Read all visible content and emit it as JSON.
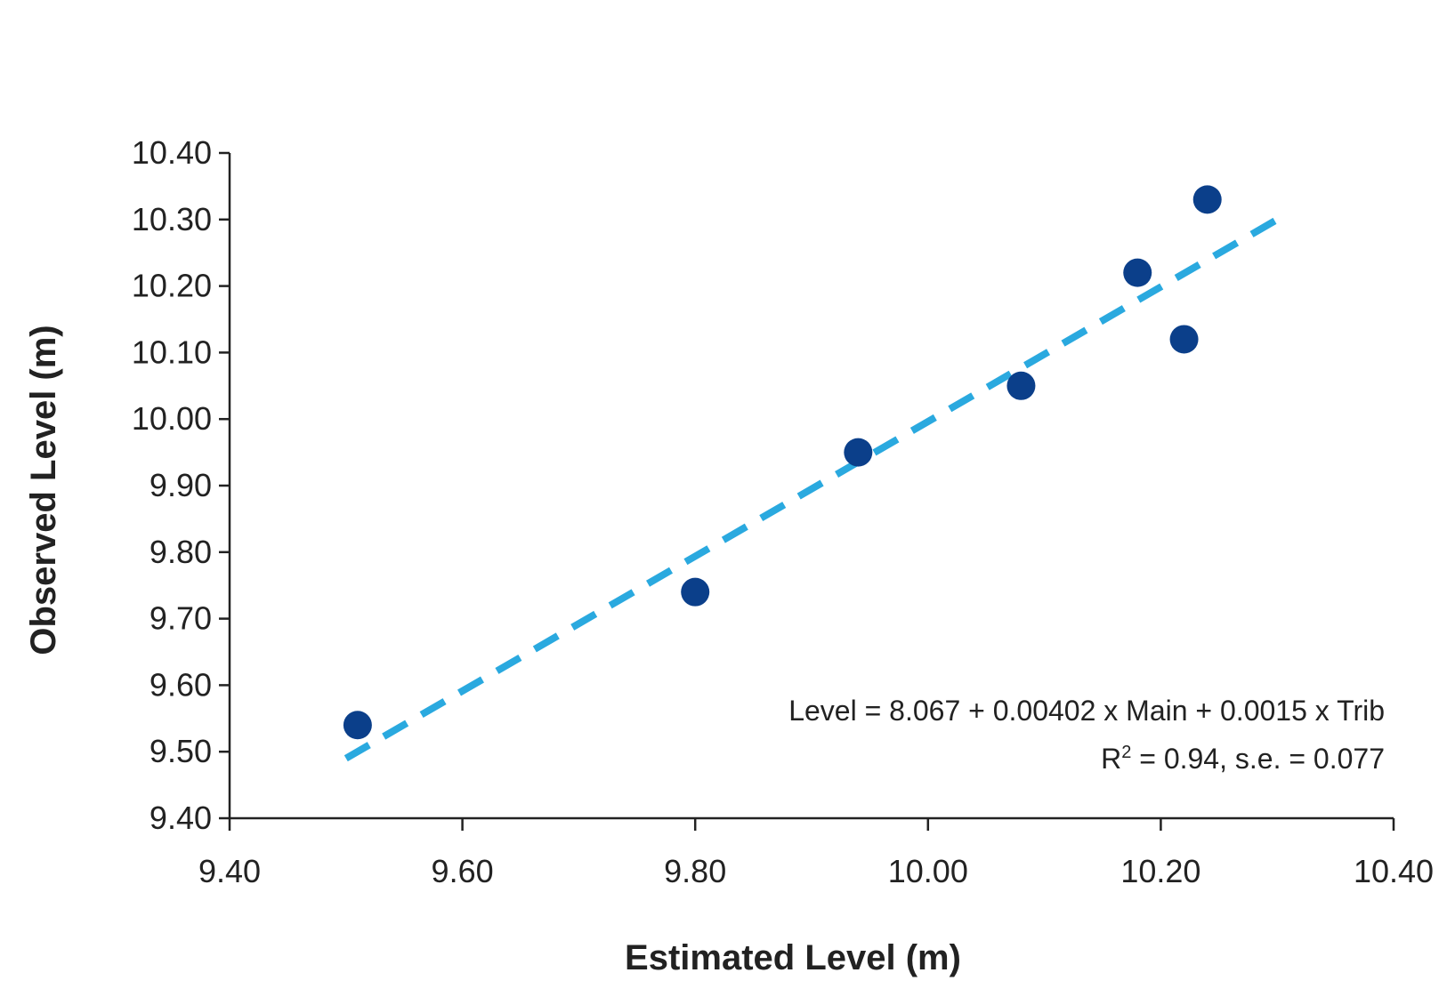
{
  "colors": {
    "points": "#0b3f8a",
    "trendline": "#2aa9df",
    "axis": "#222222"
  },
  "chart_data": {
    "type": "scatter",
    "title": "",
    "xlabel": "Estimated Level (m)",
    "ylabel": "Observed Level (m)",
    "xlim": [
      9.4,
      10.4
    ],
    "ylim": [
      9.4,
      10.4
    ],
    "x_ticks": [
      "9.40",
      "9.60",
      "9.80",
      "10.00",
      "10.20",
      "10.40"
    ],
    "y_ticks": [
      "9.40",
      "9.50",
      "9.60",
      "9.70",
      "9.80",
      "9.90",
      "10.00",
      "10.10",
      "10.20",
      "10.30",
      "10.40"
    ],
    "grid": false,
    "legend": "none",
    "series": [
      {
        "points": [
          {
            "x": 9.51,
            "y": 9.54
          },
          {
            "x": 9.8,
            "y": 9.74
          },
          {
            "x": 9.94,
            "y": 9.95
          },
          {
            "x": 10.08,
            "y": 10.05
          },
          {
            "x": 10.18,
            "y": 10.22
          },
          {
            "x": 10.22,
            "y": 10.12
          },
          {
            "x": 10.24,
            "y": 10.33
          }
        ]
      }
    ],
    "trendline": {
      "style": "dashed",
      "start": {
        "x": 9.5,
        "y": 9.49
      },
      "end": {
        "x": 10.3,
        "y": 10.3
      }
    },
    "annotations": {
      "equation": "Level = 8.067 + 0.00402 x Main + 0.0015 x Trib",
      "stats_prefix": "R",
      "stats_sup": "2",
      "stats_rest": " = 0.94, s.e. = 0.077"
    }
  }
}
